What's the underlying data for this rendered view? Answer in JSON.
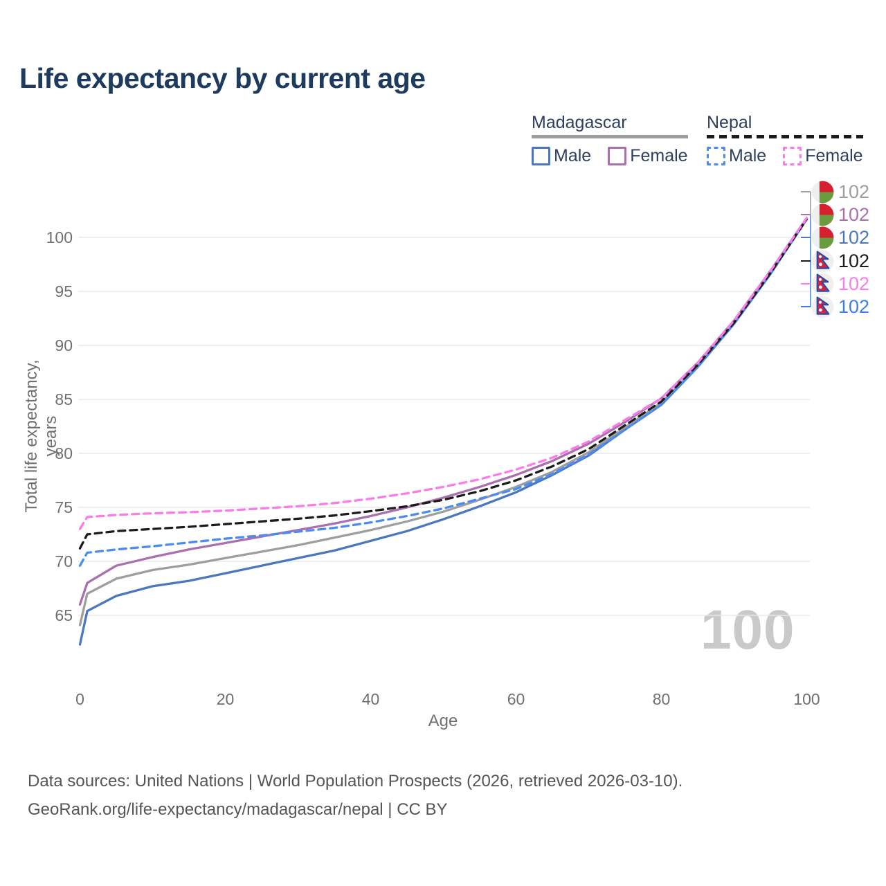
{
  "title": "Life expectancy by current age",
  "watermark": "100",
  "legend": {
    "groups": [
      {
        "name": "Madagascar",
        "line_style": "solid",
        "underline_color": "#9e9e9e",
        "items": [
          {
            "label": "Male",
            "color": "#4a77bd",
            "dashed": false
          },
          {
            "label": "Female",
            "color": "#aa6fad",
            "dashed": false
          }
        ]
      },
      {
        "name": "Nepal",
        "line_style": "dashed",
        "underline_color": "#1b1b1b",
        "items": [
          {
            "label": "Male",
            "color": "#4b8bf4",
            "dashed": true
          },
          {
            "label": "Female",
            "color": "#fb7ce8",
            "dashed": true
          }
        ]
      }
    ]
  },
  "chart_data": {
    "type": "line",
    "title": "Life expectancy by current age",
    "xlabel": "Age",
    "ylabel": "Total life expectancy, years",
    "xlim": [
      0,
      100
    ],
    "ylim": [
      62,
      102.5
    ],
    "xticks": [
      0,
      20,
      40,
      60,
      80,
      100
    ],
    "yticks": [
      65,
      70,
      75,
      80,
      85,
      90,
      95,
      100
    ],
    "grid": "horizontal",
    "legend_position": "top-right",
    "x": [
      0,
      1,
      5,
      10,
      15,
      20,
      25,
      30,
      35,
      40,
      45,
      50,
      55,
      60,
      65,
      70,
      75,
      80,
      85,
      90,
      95,
      100
    ],
    "series": [
      {
        "name": "Madagascar Male",
        "country": "Madagascar",
        "sex": "Male",
        "color": "#4a77bd",
        "dashed": false,
        "values": [
          62.3,
          65.4,
          66.8,
          67.7,
          68.2,
          68.9,
          69.6,
          70.3,
          71.0,
          71.9,
          72.8,
          73.9,
          75.1,
          76.4,
          78.0,
          79.8,
          82.2,
          84.5,
          88.0,
          92.0,
          96.6,
          101.7
        ]
      },
      {
        "name": "Madagascar Both sexes",
        "country": "Madagascar",
        "sex": "Both",
        "color": "#9e9e9e",
        "dashed": false,
        "values": [
          64.1,
          67.0,
          68.4,
          69.2,
          69.7,
          70.3,
          70.9,
          71.5,
          72.2,
          72.9,
          73.7,
          74.6,
          75.7,
          76.9,
          78.3,
          80.1,
          82.4,
          84.7,
          88.1,
          92.1,
          96.7,
          101.7
        ]
      },
      {
        "name": "Madagascar Female",
        "country": "Madagascar",
        "sex": "Female",
        "color": "#aa6fad",
        "dashed": false,
        "values": [
          66.0,
          68.0,
          69.6,
          70.4,
          71.1,
          71.7,
          72.3,
          72.9,
          73.5,
          74.2,
          75.0,
          75.9,
          76.9,
          78.0,
          79.3,
          80.9,
          82.9,
          85.1,
          88.4,
          92.3,
          96.9,
          101.8
        ]
      },
      {
        "name": "Nepal Male",
        "country": "Nepal",
        "sex": "Male",
        "color": "#4b8bf4",
        "dashed": true,
        "values": [
          69.6,
          70.8,
          71.1,
          71.4,
          71.75,
          72.1,
          72.4,
          72.75,
          73.1,
          73.6,
          74.2,
          74.9,
          75.8,
          76.7,
          78.1,
          79.9,
          82.2,
          84.5,
          88.0,
          92.0,
          96.6,
          101.7
        ]
      },
      {
        "name": "Nepal Both sexes",
        "country": "Nepal",
        "sex": "Both",
        "color": "#1b1b1b",
        "dashed": true,
        "values": [
          71.2,
          72.5,
          72.8,
          73.0,
          73.2,
          73.45,
          73.7,
          73.95,
          74.25,
          74.65,
          75.1,
          75.7,
          76.5,
          77.5,
          78.8,
          80.4,
          82.6,
          84.8,
          88.2,
          92.1,
          96.7,
          101.7
        ]
      },
      {
        "name": "Nepal Female",
        "country": "Nepal",
        "sex": "Female",
        "color": "#fb7ce8",
        "dashed": true,
        "values": [
          73.0,
          74.1,
          74.3,
          74.45,
          74.55,
          74.7,
          74.9,
          75.1,
          75.4,
          75.8,
          76.3,
          76.9,
          77.6,
          78.5,
          79.6,
          81.1,
          83.1,
          85.1,
          88.4,
          92.3,
          96.9,
          101.8
        ]
      }
    ],
    "end_labels": [
      {
        "flag": "madagascar",
        "value": "102",
        "color": "#9e9e9e"
      },
      {
        "flag": "madagascar",
        "value": "102",
        "color": "#aa6fad"
      },
      {
        "flag": "madagascar",
        "value": "102",
        "color": "#4a77bd"
      },
      {
        "flag": "nepal",
        "value": "102",
        "color": "#1b1b1b"
      },
      {
        "flag": "nepal",
        "value": "102",
        "color": "#fb7ce8"
      },
      {
        "flag": "nepal",
        "value": "102",
        "color": "#3d7bf0"
      }
    ]
  },
  "footer": {
    "line1": "Data sources: United Nations | World Population Prospects (2026, retrieved 2026-03-10).",
    "line2": "GeoRank.org/life-expectancy/madagascar/nepal | CC BY"
  }
}
